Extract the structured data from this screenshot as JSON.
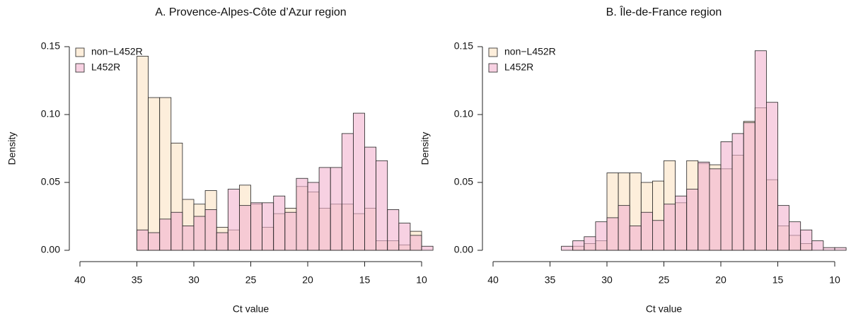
{
  "chart_data": [
    {
      "type": "histogram",
      "title": "A. Provence-Alpes-Côte d’Azur region",
      "x_label": "Ct value",
      "y_label": "Density",
      "bins": [
        35,
        34,
        33,
        32,
        31,
        30,
        29,
        28,
        27,
        26,
        25,
        24,
        23,
        22,
        21,
        20,
        19,
        18,
        17,
        16,
        15,
        14,
        13,
        12,
        11,
        10,
        9
      ],
      "series": [
        {
          "name": "non−L452R",
          "color": "#fbe3c3",
          "values": [
            0.143,
            0.1125,
            0.1125,
            0.079,
            0.0375,
            0.034,
            0.044,
            0.017,
            0.015,
            0.048,
            0.034,
            0.017,
            0.027,
            0.031,
            0.047,
            0.043,
            0.031,
            0.034,
            0.034,
            0.027,
            0.031,
            0.007,
            0.007,
            0.004,
            0.014,
            0
          ]
        },
        {
          "name": "L452R",
          "color": "#f2b3cf",
          "values": [
            0.015,
            0.013,
            0.023,
            0.028,
            0.018,
            0.025,
            0.03,
            0.013,
            0.045,
            0.033,
            0.035,
            0.035,
            0.04,
            0.028,
            0.053,
            0.05,
            0.061,
            0.061,
            0.086,
            0.101,
            0.076,
            0.066,
            0.03,
            0.02,
            0.011,
            0.003
          ]
        }
      ],
      "xlim": [
        40,
        10
      ],
      "xticks": [
        40,
        35,
        30,
        25,
        20,
        15,
        10
      ],
      "ylim": [
        0,
        0.15
      ],
      "yticks": [
        {
          "value": 0,
          "label": "0.00"
        },
        0.05,
        {
          "value": 0.1,
          "label": "0.10"
        },
        0.15
      ],
      "legend": "top-left"
    },
    {
      "type": "histogram",
      "title": "B. Île-de-France region",
      "x_label": "Ct value",
      "y_label": "Density",
      "bins": [
        34,
        33,
        32,
        31,
        30,
        29,
        28,
        27,
        26,
        25,
        24,
        23,
        22,
        21,
        20,
        19,
        18,
        17,
        16,
        15,
        14,
        13,
        12,
        11,
        10,
        9
      ],
      "series": [
        {
          "name": "non−L452R",
          "color": "#fbe3c3",
          "values": [
            0,
            0.003,
            0.005,
            0.007,
            0.057,
            0.057,
            0.057,
            0.05,
            0.051,
            0.066,
            0.035,
            0.066,
            0.064,
            0.063,
            0.06,
            0.07,
            0.095,
            0.105,
            0.052,
            0.018,
            0.011,
            0.005,
            0,
            0,
            0
          ]
        },
        {
          "name": "L452R",
          "color": "#f2b3cf",
          "values": [
            0.003,
            0.007,
            0.01,
            0.021,
            0.024,
            0.033,
            0.018,
            0.028,
            0.022,
            0.034,
            0.04,
            0.045,
            0.065,
            0.06,
            0.08,
            0.086,
            0.094,
            0.147,
            0.109,
            0.033,
            0.021,
            0.015,
            0.007,
            0.002,
            0.002
          ]
        }
      ],
      "xlim": [
        40,
        10
      ],
      "xticks": [
        40,
        35,
        30,
        25,
        20,
        15,
        10
      ],
      "ylim": [
        0,
        0.15
      ],
      "yticks": [
        {
          "value": 0,
          "label": "0.00"
        },
        0.05,
        {
          "value": 0.1,
          "label": "0.10"
        },
        0.15
      ],
      "legend": "top-left"
    }
  ]
}
